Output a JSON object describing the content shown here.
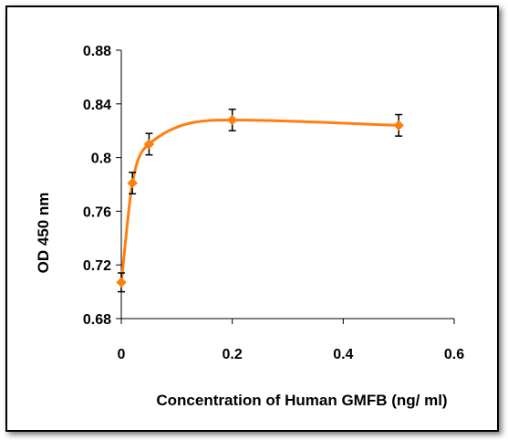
{
  "chart_data": {
    "type": "line",
    "title": "",
    "xlabel": "Concentration of Human GMFB (ng/ ml)",
    "ylabel": "OD 450 nm",
    "xlim": [
      0,
      0.6
    ],
    "ylim": [
      0.68,
      0.88
    ],
    "xticks": [
      "0",
      "0.2",
      "0.4",
      "0.6"
    ],
    "yticks": [
      "0.68",
      "0.72",
      "0.76",
      "0.8",
      "0.84",
      "0.88"
    ],
    "grid": false,
    "legend": "none",
    "series": [
      {
        "color": "#FF7F0E",
        "marker": "diamond",
        "smooth": true,
        "points": [
          {
            "x": 0.0,
            "y": 0.707,
            "err": 0.007
          },
          {
            "x": 0.02,
            "y": 0.781,
            "err": 0.008
          },
          {
            "x": 0.05,
            "y": 0.81,
            "err": 0.008
          },
          {
            "x": 0.2,
            "y": 0.828,
            "err": 0.008
          },
          {
            "x": 0.5,
            "y": 0.824,
            "err": 0.008
          }
        ]
      }
    ]
  }
}
